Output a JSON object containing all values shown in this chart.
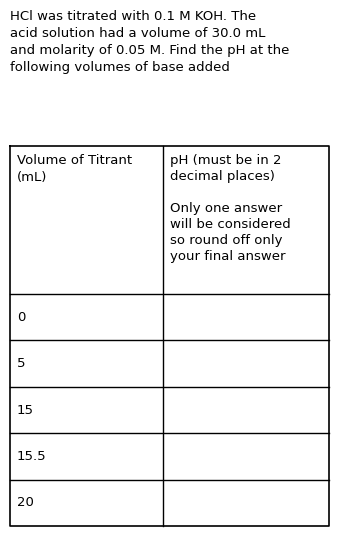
{
  "title_lines": [
    "HCl was titrated with 0.1 M KOH. The",
    "acid solution had a volume of 30.0 mL",
    "and molarity of 0.05 M. Find the pH at the",
    "following volumes of base added"
  ],
  "col1_header_lines": [
    "Volume of Titrant",
    "(mL)"
  ],
  "col2_header_lines": [
    "pH (must be in 2",
    "decimal places)",
    "",
    "Only one answer",
    "will be considered",
    "so round off only",
    "your final answer"
  ],
  "rows": [
    "0",
    "5",
    "15",
    "15.5",
    "20"
  ],
  "bg_color": "#ffffff",
  "text_color": "#000000",
  "font_size": 9.5,
  "title_font_size": 9.5,
  "figsize": [
    3.39,
    5.36
  ],
  "dpi": 100
}
